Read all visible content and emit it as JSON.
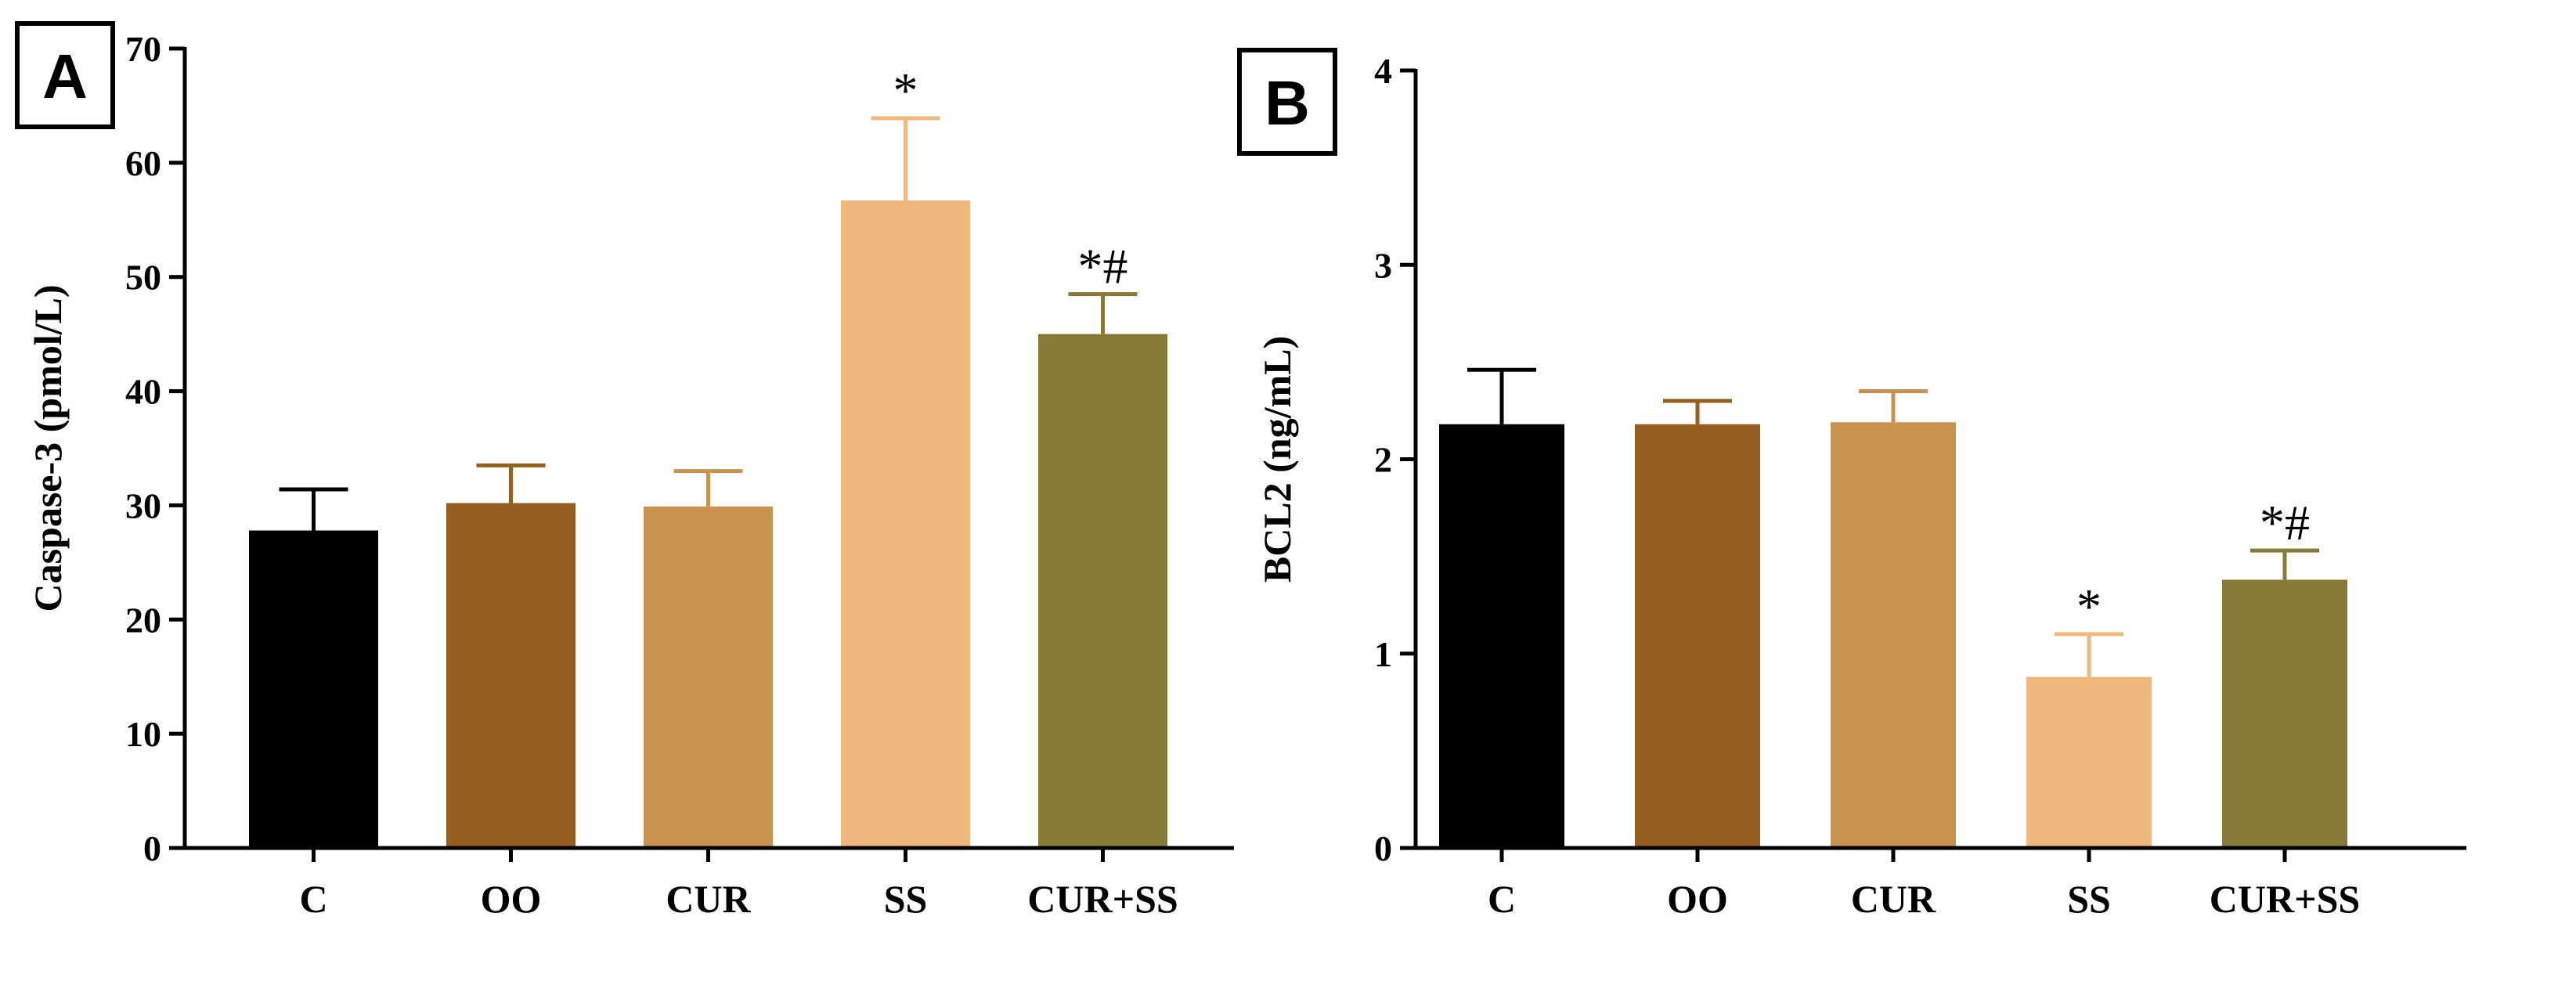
{
  "chart_data": [
    {
      "panel_label": "A",
      "type": "bar",
      "ylabel": "Caspase-3 (pmol/L)",
      "ylim": [
        0,
        70
      ],
      "yticks": [
        0,
        10,
        20,
        30,
        40,
        50,
        60,
        70
      ],
      "categories": [
        "C",
        "OO",
        "CUR",
        "SS",
        "CUR+SS"
      ],
      "values": [
        27.8,
        30.2,
        29.9,
        56.7,
        45.0
      ],
      "errors": [
        3.6,
        3.3,
        3.1,
        7.2,
        3.5
      ],
      "annotations": [
        "",
        "",
        "",
        "*",
        "*#"
      ],
      "colors": [
        "#000000",
        "#955f20",
        "#c79250",
        "#f2b77c",
        "#887a36"
      ],
      "grid": false
    },
    {
      "panel_label": "B",
      "type": "bar",
      "ylabel": "BCL2 (ng/mL)",
      "ylim": [
        0,
        4
      ],
      "yticks": [
        0,
        1,
        2,
        3,
        4
      ],
      "categories": [
        "C",
        "OO",
        "CUR",
        "SS",
        "CUR+SS"
      ],
      "values": [
        2.18,
        2.18,
        2.19,
        0.88,
        1.38
      ],
      "errors": [
        0.28,
        0.12,
        0.16,
        0.22,
        0.15
      ],
      "annotations": [
        "",
        "",
        "",
        "*",
        "*#"
      ],
      "colors": [
        "#000000",
        "#955f20",
        "#c79250",
        "#f2b77c",
        "#887a36"
      ],
      "grid": false
    }
  ]
}
